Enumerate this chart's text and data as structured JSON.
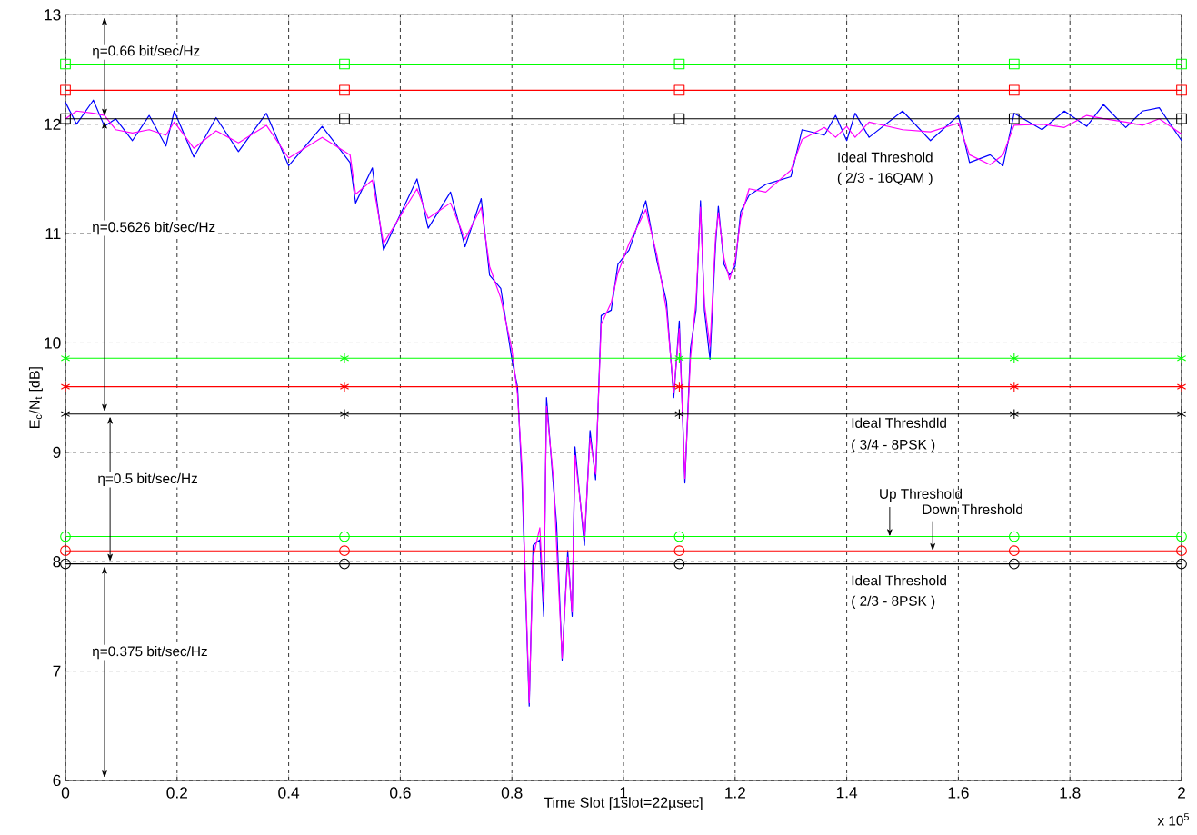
{
  "chart_data": {
    "type": "line",
    "xlabel": "Time Slot  [1slot=22µsec]",
    "ylabel": "E$_{c}$/N$_{t}$  [dB]",
    "xlim": [
      0,
      2
    ],
    "ylim": [
      6,
      13
    ],
    "xticks": [
      0,
      0.2,
      0.4,
      0.6,
      0.8,
      1,
      1.2,
      1.4,
      1.6,
      1.8,
      2
    ],
    "yticks": [
      6,
      7,
      8,
      9,
      10,
      11,
      12,
      13
    ],
    "grid": true,
    "x": [
      0,
      0.02,
      0.05,
      0.07,
      0.09,
      0.12,
      0.15,
      0.18,
      0.195,
      0.23,
      0.27,
      0.31,
      0.36,
      0.4,
      0.46,
      0.51,
      0.52,
      0.55,
      0.57,
      0.63,
      0.65,
      0.69,
      0.716,
      0.745,
      0.76,
      0.78,
      0.8,
      0.81,
      0.818,
      0.831,
      0.838,
      0.85,
      0.857,
      0.862,
      0.875,
      0.88,
      0.89,
      0.9,
      0.908,
      0.913,
      0.93,
      0.94,
      0.95,
      0.96,
      0.978,
      0.99,
      1.01,
      1.04,
      1.06,
      1.077,
      1.09,
      1.1,
      1.11,
      1.12,
      1.13,
      1.138,
      1.145,
      1.155,
      1.165,
      1.17,
      1.18,
      1.19,
      1.2,
      1.21,
      1.225,
      1.255,
      1.3,
      1.32,
      1.36,
      1.38,
      1.4,
      1.415,
      1.44,
      1.5,
      1.55,
      1.6,
      1.62,
      1.657,
      1.68,
      1.7,
      1.75,
      1.79,
      1.83,
      1.86,
      1.9,
      1.93,
      1.96,
      2.0
    ],
    "series": [
      {
        "color": "#0000ff",
        "marker": "none",
        "values": [
          12.2,
          12.0,
          12.22,
          11.98,
          12.05,
          11.85,
          12.08,
          11.8,
          12.12,
          11.7,
          12.06,
          11.75,
          12.1,
          11.62,
          11.98,
          11.65,
          11.28,
          11.6,
          10.85,
          11.5,
          11.05,
          11.38,
          10.88,
          11.32,
          10.62,
          10.5,
          9.85,
          9.6,
          8.75,
          6.68,
          8.15,
          8.2,
          7.5,
          9.5,
          8.65,
          8.35,
          7.1,
          8.1,
          7.5,
          9.05,
          8.15,
          9.2,
          8.75,
          10.25,
          10.3,
          10.72,
          10.85,
          11.3,
          10.75,
          10.38,
          9.5,
          10.2,
          8.72,
          9.95,
          10.3,
          11.3,
          10.3,
          9.85,
          10.9,
          11.25,
          10.72,
          10.62,
          10.7,
          11.2,
          11.35,
          11.45,
          11.52,
          11.95,
          11.9,
          12.08,
          11.85,
          12.1,
          11.88,
          12.12,
          11.85,
          12.08,
          11.65,
          11.72,
          11.62,
          12.1,
          11.95,
          12.12,
          11.98,
          12.18,
          11.97,
          12.12,
          12.15,
          11.85
        ]
      },
      {
        "color": "#ff00ff",
        "marker": "none",
        "values": [
          12.05,
          12.12,
          12.1,
          12.08,
          11.95,
          11.92,
          11.95,
          11.9,
          12.02,
          11.78,
          11.94,
          11.83,
          11.99,
          11.69,
          11.88,
          11.72,
          11.36,
          11.49,
          10.91,
          11.41,
          11.14,
          11.28,
          10.95,
          11.24,
          10.7,
          10.41,
          9.94,
          9.53,
          8.87,
          6.71,
          8.04,
          8.31,
          7.63,
          9.42,
          8.73,
          8.15,
          7.12,
          8.04,
          7.54,
          8.97,
          8.21,
          9.13,
          8.8,
          10.17,
          10.37,
          10.64,
          10.91,
          11.22,
          10.8,
          10.3,
          9.55,
          10.13,
          8.76,
          9.86,
          10.39,
          11.24,
          10.36,
          9.97,
          10.97,
          11.19,
          10.78,
          10.58,
          10.75,
          11.14,
          11.41,
          11.38,
          11.58,
          11.86,
          11.97,
          11.88,
          11.98,
          11.88,
          12.02,
          11.95,
          11.93,
          12.01,
          11.72,
          11.63,
          11.72,
          11.99,
          12.0,
          11.97,
          12.08,
          12.05,
          12.02,
          11.99,
          12.05,
          11.91
        ]
      },
      {
        "color": "#00ff00",
        "marker": "square",
        "x": [
          0,
          0.5,
          1.1,
          1.7,
          2
        ],
        "values": [
          12.55,
          12.55,
          12.55,
          12.55,
          12.55
        ]
      },
      {
        "color": "#ff0000",
        "marker": "square",
        "x": [
          0,
          0.5,
          1.1,
          1.7,
          2
        ],
        "values": [
          12.31,
          12.31,
          12.31,
          12.31,
          12.31
        ]
      },
      {
        "color": "#000000",
        "marker": "square",
        "x": [
          0,
          0.5,
          1.1,
          1.7,
          2
        ],
        "values": [
          12.05,
          12.05,
          12.05,
          12.05,
          12.05
        ]
      },
      {
        "color": "#00ff00",
        "marker": "cross",
        "x": [
          0,
          0.5,
          1.1,
          1.7,
          2
        ],
        "values": [
          9.86,
          9.86,
          9.86,
          9.86,
          9.86
        ]
      },
      {
        "color": "#ff0000",
        "marker": "cross",
        "x": [
          0,
          0.5,
          1.1,
          1.7,
          2
        ],
        "values": [
          9.6,
          9.6,
          9.6,
          9.6,
          9.6
        ]
      },
      {
        "color": "#000000",
        "marker": "cross",
        "x": [
          0,
          0.5,
          1.1,
          1.7,
          2
        ],
        "values": [
          9.35,
          9.35,
          9.35,
          9.35,
          9.35
        ]
      },
      {
        "color": "#00ff00",
        "marker": "circle",
        "x": [
          0,
          0.5,
          1.1,
          1.7,
          2
        ],
        "values": [
          8.23,
          8.23,
          8.23,
          8.23,
          8.23
        ]
      },
      {
        "color": "#ff0000",
        "marker": "circle",
        "x": [
          0,
          0.5,
          1.1,
          1.7,
          2
        ],
        "values": [
          8.1,
          8.1,
          8.1,
          8.1,
          8.1
        ]
      },
      {
        "color": "#000000",
        "marker": "circle",
        "x": [
          0,
          0.5,
          1.1,
          1.7,
          2
        ],
        "values": [
          7.98,
          7.98,
          7.98,
          7.98,
          7.98
        ]
      }
    ],
    "annotations": [
      "η=0.66 bit/sec/Hz",
      "η=0.5626 bit/sec/Hz",
      "η=0.5 bit/sec/Hz",
      "η=0.375 bit/sec/Hz",
      "Ideal Threshold",
      "( 2/3 - 16QAM )",
      "Ideal Threshdld",
      "( 3/4 - 8PSK )",
      {
        "text": "Up Threshold",
        "x": 1.477,
        "y": 8.23
      },
      {
        "text": "Down Threshold",
        "x": 1.554,
        "y": 8.1
      },
      "Ideal Threshold",
      "( 2/3 - 8PSK )",
      "x 10$^{5}$"
    ]
  }
}
